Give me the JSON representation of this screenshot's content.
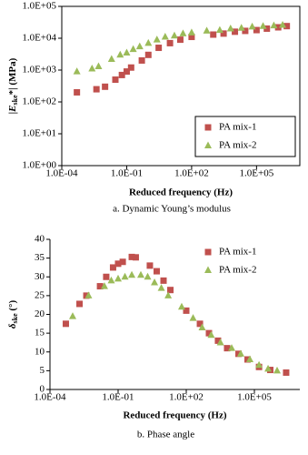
{
  "chart_data": [
    {
      "type": "scatter",
      "x_label": "Reduced frequency (Hz)",
      "y_label": {
        "main": "|E",
        "sub": "ske",
        "rest": "*| (MPa)"
      },
      "caption": "a. Dynamic Young’s modulus",
      "xscale": "log",
      "yscale": "log",
      "frame": true,
      "legend": "lower right",
      "legend_box": true,
      "xlim": [
        0.0001,
        10000000
      ],
      "ylim": [
        1,
        100000
      ],
      "xticks": [
        {
          "value": 0.0001,
          "label": "1.0E-04"
        },
        {
          "value": 0.1,
          "label": "1.0E-01"
        },
        {
          "value": 100,
          "label": "1.0E+02"
        },
        {
          "value": 100000,
          "label": "1.0E+05"
        }
      ],
      "yticks": [
        {
          "value": 1,
          "label": "1.0E+00"
        },
        {
          "value": 10,
          "label": "1.0E+01"
        },
        {
          "value": 100,
          "label": "1.0E+02"
        },
        {
          "value": 1000,
          "label": "1.0E+03"
        },
        {
          "value": 10000,
          "label": "1.0E+04"
        },
        {
          "value": 100000,
          "label": "1.0E+05"
        }
      ],
      "series": [
        {
          "name": "PA mix-1",
          "color": "#c0504d",
          "marker": "square",
          "x": [
            0.0005,
            0.004,
            0.01,
            0.03,
            0.06,
            0.1,
            0.16,
            0.5,
            1,
            3,
            10,
            30,
            100,
            1000,
            3000,
            10000,
            30000,
            100000,
            300000,
            1000000,
            2500000
          ],
          "values": [
            200,
            250,
            300,
            500,
            700,
            900,
            1200,
            2000,
            3000,
            5000,
            7000,
            9000,
            11000,
            13000,
            14000,
            16000,
            17000,
            18000,
            20000,
            22000,
            24000
          ]
        },
        {
          "name": "PA mix-2",
          "color": "#9bbb59",
          "marker": "triangle",
          "x": [
            0.0005,
            0.0025,
            0.005,
            0.02,
            0.05,
            0.1,
            0.2,
            0.4,
            1,
            2.5,
            6,
            16,
            40,
            100,
            500,
            2000,
            6300,
            20000,
            63000,
            200000,
            630000,
            1600000
          ],
          "values": [
            900,
            1100,
            1300,
            2200,
            3000,
            3500,
            4500,
            5500,
            7000,
            9000,
            11000,
            12000,
            14000,
            15000,
            17000,
            18000,
            20000,
            21000,
            23000,
            24000,
            25000,
            26000
          ]
        }
      ]
    },
    {
      "type": "scatter",
      "x_label": "Reduced frequency (Hz)",
      "y_label": {
        "main": "δ",
        "sub": "ske",
        "rest": " (°)"
      },
      "caption": "b. Phase angle",
      "xscale": "log",
      "yscale": "linear",
      "frame": false,
      "legend": "upper right",
      "legend_box": false,
      "xlim": [
        0.0001,
        10000000
      ],
      "ylim": [
        0,
        40
      ],
      "xticks": [
        {
          "value": 0.0001,
          "label": "1.0E-04"
        },
        {
          "value": 0.1,
          "label": "1.0E-01"
        },
        {
          "value": 100,
          "label": "1.0E+02"
        },
        {
          "value": 100000,
          "label": "1.0E+05"
        }
      ],
      "yticks": [
        0,
        5,
        10,
        15,
        20,
        25,
        30,
        35,
        40
      ],
      "series": [
        {
          "name": "PA mix-1",
          "color": "#c0504d",
          "marker": "square",
          "x": [
            0.0005,
            0.002,
            0.004,
            0.016,
            0.03,
            0.06,
            0.1,
            0.16,
            0.4,
            0.6,
            2.5,
            5,
            10,
            20,
            100,
            400,
            1000,
            2500,
            6300,
            20000,
            50000,
            160000,
            500000,
            2500000
          ],
          "values": [
            17.5,
            22.8,
            25,
            27.5,
            30,
            32.5,
            33.5,
            34,
            35.3,
            35.2,
            33,
            31.5,
            29,
            26.5,
            21,
            17.5,
            15,
            13,
            11,
            9.5,
            8,
            6,
            5.2,
            4.5
          ]
        },
        {
          "name": "PA mix-2",
          "color": "#9bbb59",
          "marker": "triangle",
          "x": [
            0.001,
            0.005,
            0.025,
            0.05,
            0.1,
            0.2,
            0.4,
            1,
            2,
            4,
            8,
            16,
            63,
            200,
            500,
            1250,
            3200,
            10000,
            25000,
            63000,
            160000,
            400000,
            1000000
          ],
          "values": [
            19.5,
            25,
            27.5,
            29,
            29.5,
            30,
            30.5,
            30.5,
            30,
            28.5,
            27,
            25,
            22,
            19,
            16.5,
            14.5,
            12.5,
            11,
            9.5,
            8,
            6.5,
            5.5,
            5
          ]
        }
      ]
    }
  ]
}
